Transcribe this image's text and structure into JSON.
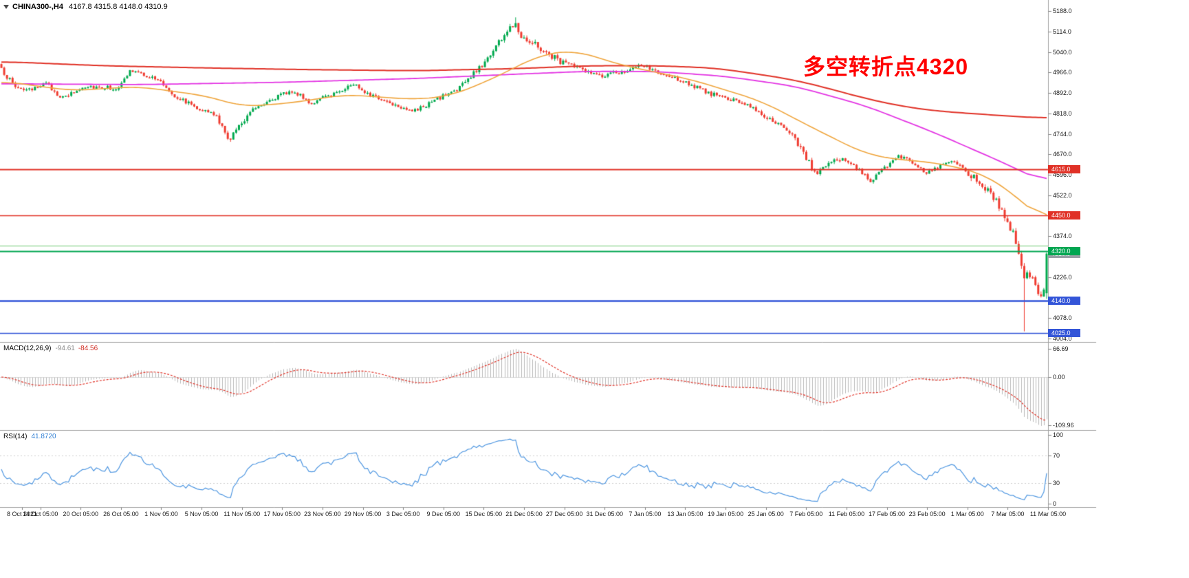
{
  "header": {
    "symbol": "CHINA300-,H4",
    "ohlc_text": "4167.8 4315.8 4148.0 4310.9"
  },
  "annotation": {
    "text": "多空转折点4320",
    "color": "#ff0000"
  },
  "macd": {
    "name": "MACD(12,26,9)",
    "value_main": "-94.61",
    "value_signal": "-84.56",
    "ticks": [
      "66.69",
      "0.00",
      "-109.96"
    ],
    "colors": {
      "histogram": "#b9b9b9",
      "signal": "#e03126"
    }
  },
  "rsi": {
    "name": "RSI(14)",
    "value": "41.8720",
    "ticks": [
      "100",
      "70",
      "30",
      "0"
    ],
    "levels": [
      70,
      30
    ],
    "color": "#4c95e0"
  },
  "price_axis": {
    "ticks": [
      "5188.0",
      "5114.0",
      "5040.0",
      "4966.0",
      "4892.0",
      "4818.0",
      "4744.0",
      "4670.0",
      "4596.0",
      "4522.0",
      "4374.0",
      "4226.0",
      "4078.0",
      "4004.0"
    ]
  },
  "time_axis": {
    "labels": [
      "8 Oct 2021",
      "14 Oct 05:00",
      "20 Oct 05:00",
      "26 Oct 05:00",
      "1 Nov 05:00",
      "5 Nov 05:00",
      "11 Nov 05:00",
      "17 Nov 05:00",
      "23 Nov 05:00",
      "29 Nov 05:00",
      "3 Dec 05:00",
      "9 Dec 05:00",
      "15 Dec 05:00",
      "21 Dec 05:00",
      "27 Dec 05:00",
      "31 Dec 05:00",
      "7 Jan 05:00",
      "13 Jan 05:00",
      "19 Jan 05:00",
      "25 Jan 05:00",
      "7 Feb 05:00",
      "11 Feb 05:00",
      "17 Feb 05:00",
      "23 Feb 05:00",
      "1 Mar 05:00",
      "7 Mar 05:00",
      "11 Mar 05:00"
    ]
  },
  "chart_data": {
    "type": "candlestick",
    "symbol": "CHINA300-",
    "timeframe": "H4",
    "y_range": [
      4004,
      5188
    ],
    "num_candles": 375,
    "candle_colors": {
      "up": "#00a94e",
      "down": "#ef3b30"
    },
    "price_waypoints": [
      [
        0,
        4975
      ],
      [
        5,
        4915
      ],
      [
        11,
        4898
      ],
      [
        15,
        4932
      ],
      [
        22,
        4872
      ],
      [
        30,
        4918
      ],
      [
        42,
        4908
      ],
      [
        46,
        4972
      ],
      [
        52,
        4955
      ],
      [
        57,
        4932
      ],
      [
        62,
        4882
      ],
      [
        69,
        4845
      ],
      [
        77,
        4808
      ],
      [
        81,
        4722
      ],
      [
        85,
        4768
      ],
      [
        89,
        4830
      ],
      [
        96,
        4868
      ],
      [
        104,
        4900
      ],
      [
        111,
        4855
      ],
      [
        119,
        4890
      ],
      [
        126,
        4925
      ],
      [
        133,
        4880
      ],
      [
        141,
        4850
      ],
      [
        148,
        4826
      ],
      [
        156,
        4870
      ],
      [
        163,
        4905
      ],
      [
        168,
        4950
      ],
      [
        173,
        5005
      ],
      [
        178,
        5078
      ],
      [
        182,
        5125
      ],
      [
        184,
        5148
      ],
      [
        186,
        5098
      ],
      [
        190,
        5078
      ],
      [
        195,
        5035
      ],
      [
        200,
        5008
      ],
      [
        207,
        4980
      ],
      [
        215,
        4950
      ],
      [
        222,
        4970
      ],
      [
        230,
        4990
      ],
      [
        237,
        4955
      ],
      [
        244,
        4935
      ],
      [
        252,
        4895
      ],
      [
        259,
        4872
      ],
      [
        267,
        4852
      ],
      [
        274,
        4802
      ],
      [
        281,
        4756
      ],
      [
        286,
        4700
      ],
      [
        291,
        4602
      ],
      [
        296,
        4636
      ],
      [
        301,
        4656
      ],
      [
        306,
        4620
      ],
      [
        311,
        4576
      ],
      [
        316,
        4620
      ],
      [
        321,
        4664
      ],
      [
        326,
        4640
      ],
      [
        331,
        4606
      ],
      [
        336,
        4626
      ],
      [
        341,
        4646
      ],
      [
        346,
        4602
      ],
      [
        351,
        4560
      ],
      [
        355,
        4514
      ],
      [
        359,
        4450
      ],
      [
        362,
        4386
      ],
      [
        364,
        4300
      ],
      [
        366,
        4228
      ],
      [
        369,
        4232
      ],
      [
        371,
        4166
      ],
      [
        373,
        4168
      ],
      [
        374,
        4310.9
      ]
    ],
    "overrides": [
      {
        "i": 184,
        "high": 5165
      },
      {
        "i": 366,
        "low": 4030
      }
    ],
    "last_candle": {
      "open": 4167.8,
      "high": 4315.8,
      "low": 4148.0,
      "close": 4310.9
    },
    "moving_averages": [
      {
        "name": "ma-slow-red",
        "color": "#e03126",
        "width": 2,
        "points": [
          [
            0,
            5005
          ],
          [
            37,
            4990
          ],
          [
            74,
            4982
          ],
          [
            111,
            4976
          ],
          [
            148,
            4972
          ],
          [
            185,
            4980
          ],
          [
            210,
            4990
          ],
          [
            235,
            4990
          ],
          [
            255,
            4982
          ],
          [
            272,
            4958
          ],
          [
            284,
            4938
          ],
          [
            296,
            4908
          ],
          [
            309,
            4872
          ],
          [
            321,
            4846
          ],
          [
            333,
            4828
          ],
          [
            346,
            4818
          ],
          [
            358,
            4810
          ],
          [
            374,
            4800
          ]
        ]
      },
      {
        "name": "ma-mid-magenta",
        "color": "#e335e3",
        "width": 1.8,
        "points": [
          [
            0,
            4925
          ],
          [
            49,
            4922
          ],
          [
            99,
            4930
          ],
          [
            148,
            4944
          ],
          [
            185,
            4960
          ],
          [
            210,
            4970
          ],
          [
            235,
            4969
          ],
          [
            259,
            4952
          ],
          [
            284,
            4916
          ],
          [
            309,
            4846
          ],
          [
            333,
            4752
          ],
          [
            358,
            4642
          ],
          [
            374,
            4566
          ]
        ]
      },
      {
        "name": "ma-fast-orange",
        "color": "#efa53d",
        "width": 1.6,
        "points": [
          [
            0,
            4935
          ],
          [
            25,
            4900
          ],
          [
            49,
            4915
          ],
          [
            74,
            4880
          ],
          [
            86,
            4842
          ],
          [
            104,
            4856
          ],
          [
            123,
            4886
          ],
          [
            148,
            4868
          ],
          [
            160,
            4880
          ],
          [
            173,
            4930
          ],
          [
            193,
            5030
          ],
          [
            205,
            5046
          ],
          [
            222,
            4992
          ],
          [
            247,
            4940
          ],
          [
            272,
            4862
          ],
          [
            291,
            4762
          ],
          [
            309,
            4672
          ],
          [
            321,
            4650
          ],
          [
            333,
            4642
          ],
          [
            351,
            4602
          ],
          [
            363,
            4520
          ],
          [
            374,
            4420
          ]
        ]
      }
    ],
    "horizontal_lines": [
      {
        "value": 4615,
        "color": "#e03126",
        "width": 2,
        "badge": "4615.0"
      },
      {
        "value": 4450,
        "color": "#e03126",
        "width": 1.4,
        "badge": "4450.0"
      },
      {
        "value": 4340,
        "color": "#69c76d",
        "width": 1.2
      },
      {
        "value": 4320,
        "color": "#00a651",
        "width": 2,
        "badge": "4320.0"
      },
      {
        "value": 4140,
        "color": "#3355d8",
        "width": 2.4,
        "badge": "4140.0"
      },
      {
        "value": 4025,
        "color": "#3355d8",
        "width": 1.6,
        "badge": "4025.0"
      }
    ],
    "current_price_badge": {
      "text": "4310.9",
      "value": 4310.9,
      "color": "#9aa0a6"
    }
  }
}
